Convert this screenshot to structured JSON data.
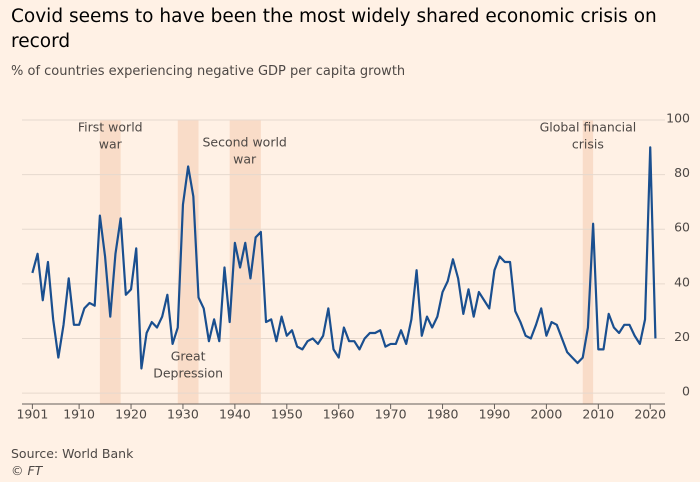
{
  "chart_data": {
    "type": "line",
    "title": "Covid seems to have been the most widely shared economic crisis on record",
    "subtitle": "% of countries experiencing negative GDP per capita growth",
    "source": "Source: World Bank",
    "credit": "© FT",
    "x": [
      1901,
      1902,
      1903,
      1904,
      1905,
      1906,
      1907,
      1908,
      1909,
      1910,
      1911,
      1912,
      1913,
      1914,
      1915,
      1916,
      1917,
      1918,
      1919,
      1920,
      1921,
      1922,
      1923,
      1924,
      1925,
      1926,
      1927,
      1928,
      1929,
      1930,
      1931,
      1932,
      1933,
      1934,
      1935,
      1936,
      1937,
      1938,
      1939,
      1940,
      1941,
      1942,
      1943,
      1944,
      1945,
      1946,
      1947,
      1948,
      1949,
      1950,
      1951,
      1952,
      1953,
      1954,
      1955,
      1956,
      1957,
      1958,
      1959,
      1960,
      1961,
      1962,
      1963,
      1964,
      1965,
      1966,
      1967,
      1968,
      1969,
      1970,
      1971,
      1972,
      1973,
      1974,
      1975,
      1976,
      1977,
      1978,
      1979,
      1980,
      1981,
      1982,
      1983,
      1984,
      1985,
      1986,
      1987,
      1988,
      1989,
      1990,
      1991,
      1992,
      1993,
      1994,
      1995,
      1996,
      1997,
      1998,
      1999,
      2000,
      2001,
      2002,
      2003,
      2004,
      2005,
      2006,
      2007,
      2008,
      2009,
      2010,
      2011,
      2012,
      2013,
      2014,
      2015,
      2016,
      2017,
      2018,
      2019,
      2020,
      2021
    ],
    "series": [
      {
        "color": "#1a4f8f",
        "values": [
          44,
          51,
          34,
          48,
          27,
          13,
          25,
          42,
          25,
          25,
          31,
          33,
          32,
          65,
          50,
          28,
          51,
          64,
          36,
          38,
          53,
          9,
          22,
          26,
          24,
          28,
          36,
          18,
          24,
          69,
          83,
          72,
          35,
          31,
          19,
          27,
          19,
          46,
          26,
          55,
          46,
          55,
          42,
          57,
          59,
          26,
          27,
          19,
          28,
          21,
          23,
          17,
          16,
          19,
          20,
          18,
          21,
          31,
          16,
          13,
          24,
          19,
          19,
          16,
          20,
          22,
          22,
          23,
          17,
          18,
          18,
          23,
          18,
          27,
          45,
          21,
          28,
          24,
          28,
          37,
          41,
          49,
          42,
          29,
          38,
          28,
          37,
          34,
          31,
          45,
          50,
          48,
          48,
          30,
          26,
          21,
          20,
          25,
          31,
          21,
          26,
          25,
          20,
          15,
          13,
          11,
          13,
          24,
          62,
          16,
          16,
          29,
          24,
          22,
          25,
          25,
          21,
          18,
          27,
          90,
          20
        ]
      }
    ],
    "xlim": [
      1899,
      2024
    ],
    "xticks": [
      1901,
      1910,
      1920,
      1930,
      1940,
      1950,
      1960,
      1970,
      1980,
      1990,
      2000,
      2010,
      2020
    ],
    "ylim": [
      -4,
      100
    ],
    "yticks": [
      0,
      20,
      40,
      60,
      80,
      100
    ],
    "grid": true,
    "shaded": [
      {
        "start": 1914,
        "end": 1918,
        "label": [
          "First world",
          "war"
        ]
      },
      {
        "start": 1929,
        "end": 1933,
        "label": [
          "Great",
          "Depression"
        ]
      },
      {
        "start": 1939,
        "end": 1945,
        "label": [
          "Second world",
          "war"
        ]
      },
      {
        "start": 2007,
        "end": 2009,
        "label": [
          "Global financial",
          "crisis"
        ]
      }
    ]
  }
}
